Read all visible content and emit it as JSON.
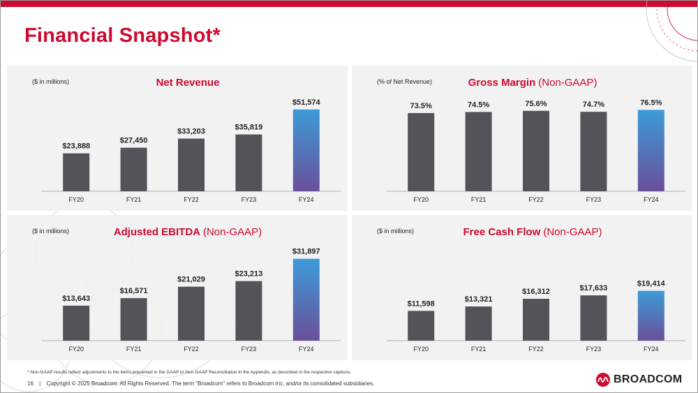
{
  "page": {
    "title": "Financial Snapshot*"
  },
  "colors": {
    "brand_red": "#cc092f",
    "bar_gray": "#525459",
    "highlight_top": "#3d9bd8",
    "highlight_bottom": "#6a4f9a",
    "panel_bg": "#f0f0f0"
  },
  "footnote": "* Non-GAAP results reflect adjustments to the items presented in the GAAP to Non-GAAP Reconciliation in the Appendix, as described in the respective captions.",
  "footer": {
    "page_number": "16",
    "separator": "|",
    "copyright": "Copyright © 2025 Broadcom.  All Rights Reserved. The term “Broadcom” refers to Broadcom Inc. and/or its consolidated subsidiaries."
  },
  "logo": {
    "text": "BROADCOM",
    "icon": "broadcom-logo-icon"
  },
  "chart_data": [
    {
      "type": "bar",
      "unit_note": "($ in millions)",
      "title": "Net Revenue",
      "subtitle": "",
      "categories": [
        "FY20",
        "FY21",
        "FY22",
        "FY23",
        "FY24"
      ],
      "values": [
        23888,
        27450,
        33203,
        35819,
        51574
      ],
      "value_labels": [
        "$23,888",
        "$27,450",
        "$33,203",
        "$35,819",
        "$51,574"
      ],
      "ylim": [
        0,
        55000
      ],
      "highlight_index": 4,
      "grid": false
    },
    {
      "type": "bar",
      "unit_note": "(% of Net Revenue)",
      "title": "Gross Margin",
      "subtitle": "(Non-GAAP)",
      "categories": [
        "FY20",
        "FY21",
        "FY22",
        "FY23",
        "FY24"
      ],
      "values": [
        73.5,
        74.5,
        75.6,
        74.7,
        76.5
      ],
      "value_labels": [
        "73.5%",
        "74.5%",
        "75.6%",
        "74.7%",
        "76.5%"
      ],
      "ylim": [
        0,
        82
      ],
      "highlight_index": 4,
      "grid": false
    },
    {
      "type": "bar",
      "unit_note": "($ in millions)",
      "title": "Adjusted EBITDA",
      "subtitle": "(Non-GAAP)",
      "categories": [
        "FY20",
        "FY21",
        "FY22",
        "FY23",
        "FY24"
      ],
      "values": [
        13643,
        16571,
        21029,
        23213,
        31897
      ],
      "value_labels": [
        "$13,643",
        "$16,571",
        "$21,029",
        "$23,213",
        "$31,897"
      ],
      "ylim": [
        0,
        34000
      ],
      "highlight_index": 4,
      "grid": false
    },
    {
      "type": "bar",
      "unit_note": "($ in millions)",
      "title": "Free Cash Flow",
      "subtitle": "(Non-GAAP)",
      "categories": [
        "FY20",
        "FY21",
        "FY22",
        "FY23",
        "FY24"
      ],
      "values": [
        11598,
        13321,
        16312,
        17633,
        19414
      ],
      "value_labels": [
        "$11,598",
        "$13,321",
        "$16,312",
        "$17,633",
        "$19,414"
      ],
      "ylim": [
        0,
        34000
      ],
      "highlight_index": 4,
      "grid": false
    }
  ]
}
